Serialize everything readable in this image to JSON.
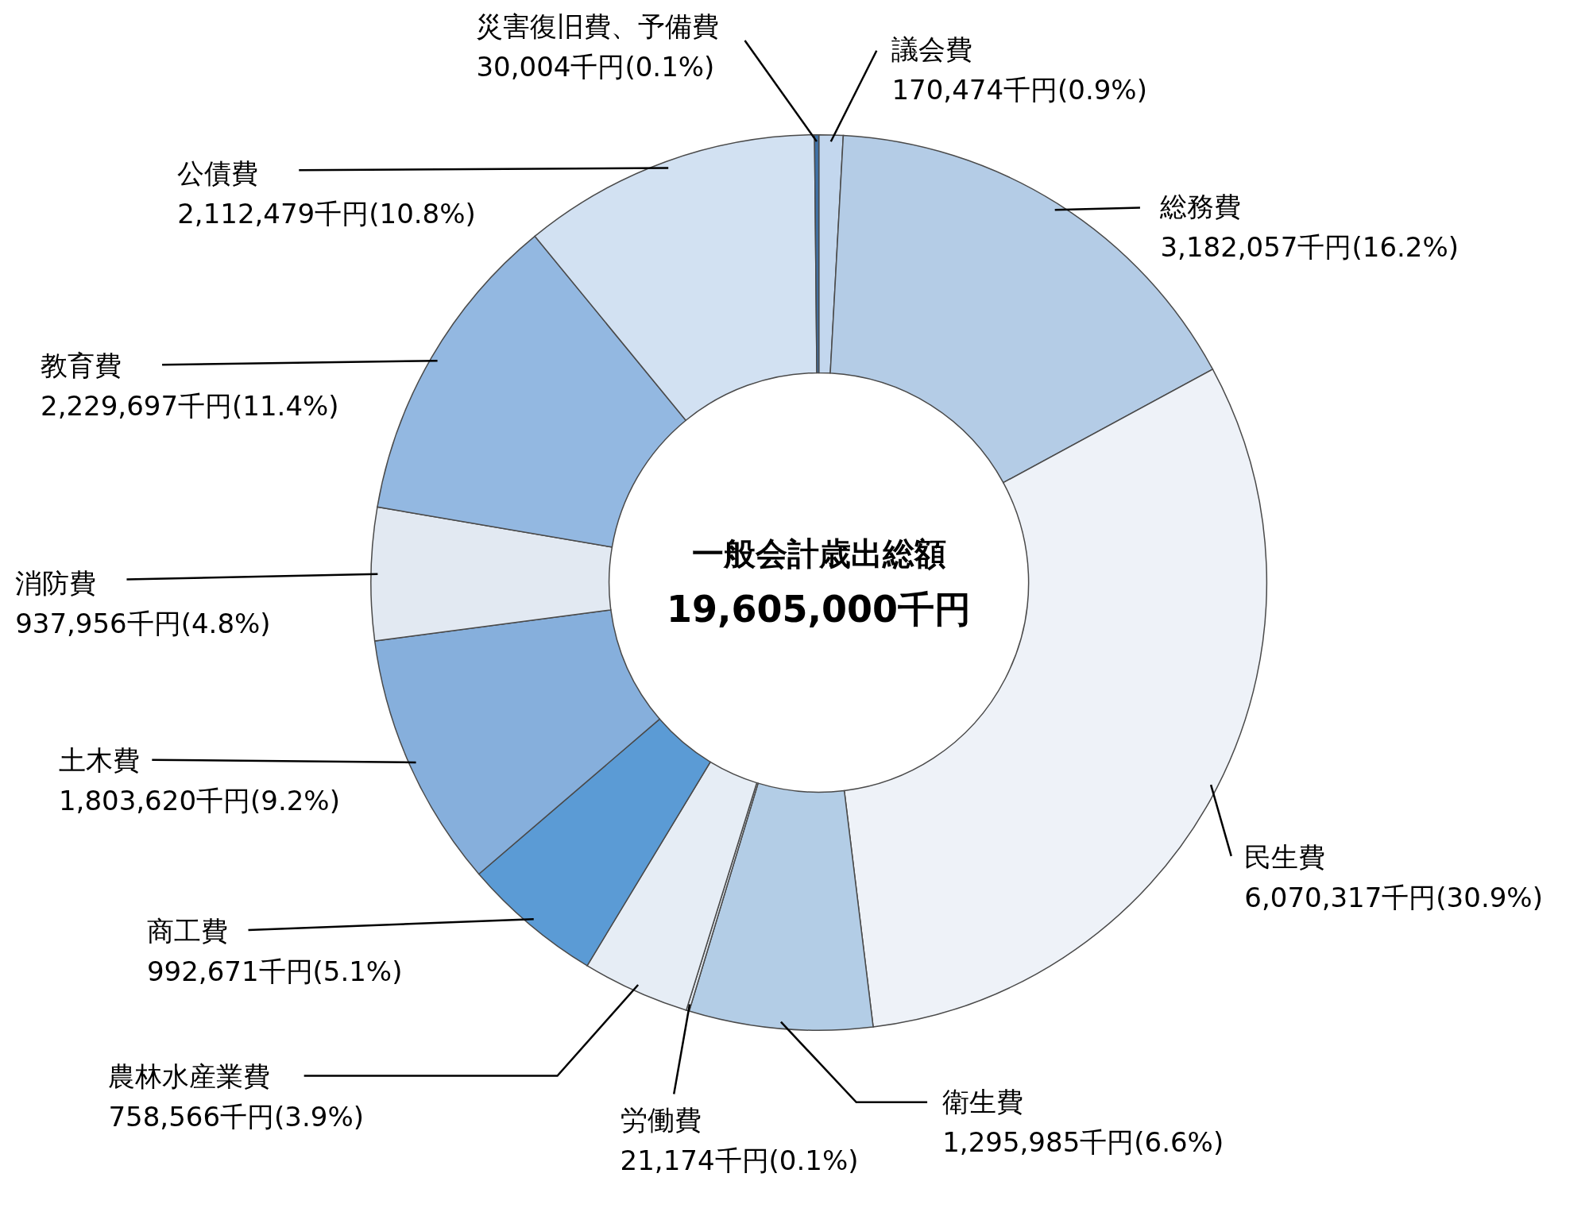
{
  "chart_data": {
    "type": "donut",
    "categories": [
      "議会費",
      "総務費",
      "民生費",
      "衛生費",
      "労働費",
      "農林水産業費",
      "商工費",
      "土木費",
      "消防費",
      "教育費",
      "公債費",
      "災害復旧費、予備費"
    ],
    "values": [
      170474,
      3182057,
      6070317,
      1295985,
      21174,
      758566,
      992671,
      1803620,
      937956,
      2229697,
      2112479,
      30004
    ],
    "colors": [
      "#c3d7ee",
      "#b4cce6",
      "#eef2f8",
      "#b3cde6",
      "#e4ebf3",
      "#e6edf5",
      "#5b9bd5",
      "#86afdc",
      "#e2e9f2",
      "#93b8e1",
      "#d2e1f2",
      "#3f72a8"
    ],
    "value_labels": [
      "170,474千円(0.9%)",
      "3,182,057千円(16.2%)",
      "6,070,317千円(30.9%)",
      "1,295,985千円(6.6%)",
      "21,174千円(0.1%)",
      "758,566千円(3.9%)",
      "992,671千円(5.1%)",
      "1,803,620千円(9.2%)",
      "937,956千円(4.8%)",
      "2,229,697千円(11.4%)",
      "2,112,479千円(10.8%)",
      "30,004千円(0.1%)"
    ],
    "annotations": [
      "一般会計歳出総額",
      "19,605,000千円"
    ]
  }
}
